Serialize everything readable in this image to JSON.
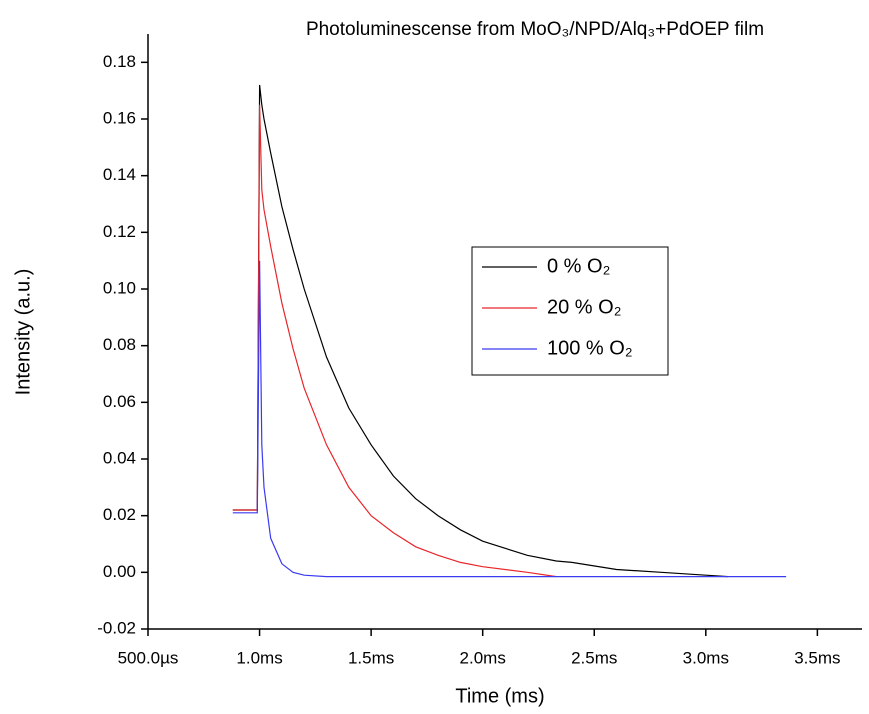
{
  "chart_data": {
    "type": "line",
    "title": "Photoluminescense from MoO₃/NPD/Alq₃+PdOEP film",
    "xlabel": "Time (ms)",
    "ylabel": "Intensity (a.u.)",
    "x": [
      0.88,
      0.99,
      1.0,
      1.01,
      1.02,
      1.05,
      1.1,
      1.15,
      1.2,
      1.3,
      1.4,
      1.5,
      1.6,
      1.7,
      1.8,
      1.9,
      2.0,
      2.2,
      2.33,
      2.4,
      2.6,
      2.8,
      3.0,
      3.1,
      3.36
    ],
    "series": [
      {
        "name": "0 % O₂",
        "color": "#000000",
        "values": [
          0.022,
          0.022,
          0.172,
          0.165,
          0.16,
          0.148,
          0.129,
          0.114,
          0.1,
          0.076,
          0.058,
          0.045,
          0.034,
          0.026,
          0.02,
          0.015,
          0.011,
          0.006,
          0.004,
          0.0035,
          0.001,
          0.0,
          -0.001,
          -0.0015,
          null
        ]
      },
      {
        "name": "20 % O₂",
        "color": "#e8262b",
        "values": [
          0.022,
          0.022,
          0.165,
          0.135,
          0.128,
          0.115,
          0.095,
          0.079,
          0.065,
          0.045,
          0.03,
          0.02,
          0.014,
          0.009,
          0.006,
          0.0035,
          0.002,
          0.0,
          -0.0015,
          null,
          null,
          null,
          null,
          null,
          null
        ]
      },
      {
        "name": "100 % O₂",
        "color": "#3a3af0",
        "values": [
          0.021,
          0.021,
          0.11,
          0.045,
          0.03,
          0.012,
          0.003,
          0.0,
          -0.001,
          -0.0015,
          -0.0015,
          -0.0015,
          -0.0015,
          -0.0015,
          -0.0015,
          -0.0015,
          -0.0015,
          -0.0015,
          -0.0015,
          -0.0015,
          -0.0015,
          -0.0015,
          -0.0015,
          -0.0015,
          -0.0015
        ]
      }
    ],
    "xlim": [
      0.5,
      3.7
    ],
    "ylim": [
      -0.02,
      0.19
    ],
    "xticks": [
      {
        "value": 0.5,
        "label": "500.0µs"
      },
      {
        "value": 1.0,
        "label": "1.0ms"
      },
      {
        "value": 1.5,
        "label": "1.5ms"
      },
      {
        "value": 2.0,
        "label": "2.0ms"
      },
      {
        "value": 2.5,
        "label": "2.5ms"
      },
      {
        "value": 3.0,
        "label": "3.0ms"
      },
      {
        "value": 3.5,
        "label": "3.5ms"
      }
    ],
    "yticks": [
      {
        "value": -0.02,
        "label": "-0.02"
      },
      {
        "value": 0.0,
        "label": "0.00"
      },
      {
        "value": 0.02,
        "label": "0.02"
      },
      {
        "value": 0.04,
        "label": "0.04"
      },
      {
        "value": 0.06,
        "label": "0.06"
      },
      {
        "value": 0.08,
        "label": "0.08"
      },
      {
        "value": 0.1,
        "label": "0.10"
      },
      {
        "value": 0.12,
        "label": "0.12"
      },
      {
        "value": 0.14,
        "label": "0.14"
      },
      {
        "value": 0.16,
        "label": "0.16"
      },
      {
        "value": 0.18,
        "label": "0.18"
      }
    ],
    "legend": "right"
  }
}
